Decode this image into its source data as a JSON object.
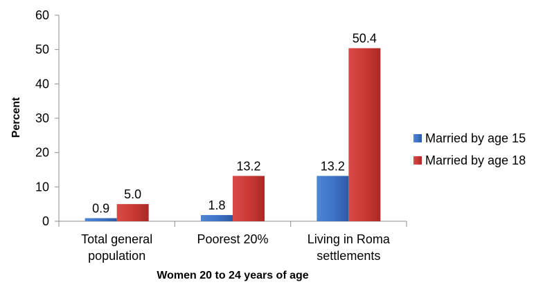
{
  "chart_data": {
    "type": "bar",
    "title": "",
    "xlabel": "Women 20 to 24 years of age",
    "ylabel": "Percent",
    "ylim": [
      0,
      60
    ],
    "yticks": [
      0,
      10,
      20,
      30,
      40,
      50,
      60
    ],
    "grid": false,
    "legend_position": "right",
    "categories": [
      [
        "Total general",
        "population"
      ],
      [
        "Poorest 20%"
      ],
      [
        "Living in Roma",
        "settlements"
      ]
    ],
    "series": [
      {
        "name": "Married by age 15",
        "color": "#3d72c4",
        "values": [
          0.9,
          1.8,
          13.2
        ],
        "labels": [
          "0.9",
          "1.8",
          "13.2"
        ]
      },
      {
        "name": "Married by age 18",
        "color": "#cc3a37",
        "values": [
          5.0,
          13.2,
          50.4
        ],
        "labels": [
          "5.0",
          "13.2",
          "50.4"
        ]
      }
    ]
  }
}
